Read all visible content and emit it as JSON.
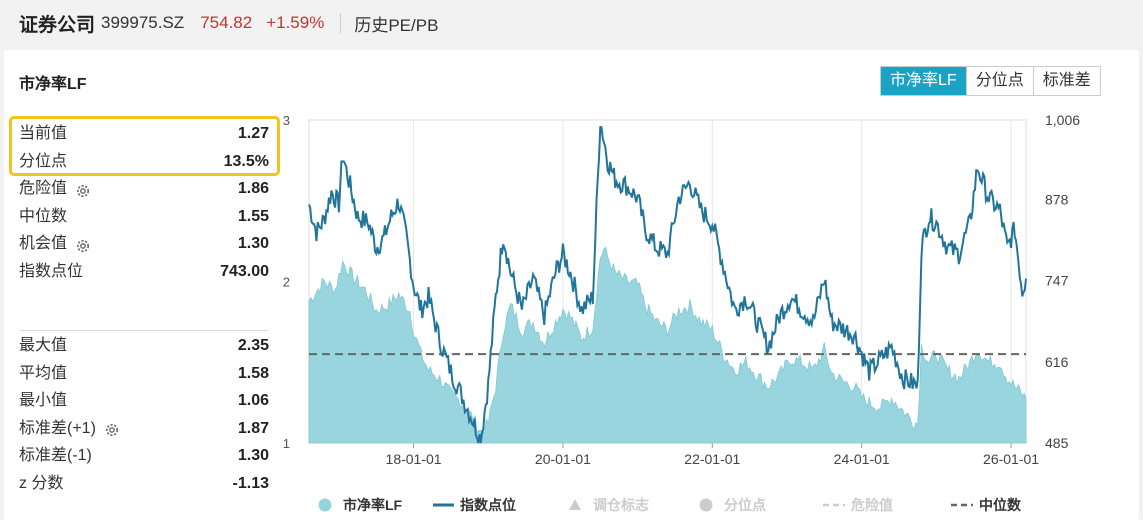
{
  "header": {
    "name": "证券公司",
    "code": "399975.SZ",
    "price": "754.82",
    "change": "+1.59%",
    "history": "历史PE/PB"
  },
  "panel": {
    "title": "市净率LF",
    "tabs": [
      "市净率LF",
      "分位点",
      "标准差"
    ],
    "active_tab": 0
  },
  "stats_top": [
    {
      "label": "当前值",
      "value": "1.27",
      "gear": false
    },
    {
      "label": "分位点",
      "value": "13.5%",
      "gear": false
    },
    {
      "label": "危险值",
      "value": "1.86",
      "gear": true
    },
    {
      "label": "中位数",
      "value": "1.55",
      "gear": false
    },
    {
      "label": "机会值",
      "value": "1.30",
      "gear": true
    },
    {
      "label": "指数点位",
      "value": "743.00",
      "gear": false
    }
  ],
  "stats_bottom": [
    {
      "label": "最大值",
      "value": "2.35",
      "gear": false
    },
    {
      "label": "平均值",
      "value": "1.58",
      "gear": false
    },
    {
      "label": "最小值",
      "value": "1.06",
      "gear": false
    },
    {
      "label": "标准差(+1)",
      "value": "1.87",
      "gear": true
    },
    {
      "label": "标准差(-1)",
      "value": "1.30",
      "gear": false
    },
    {
      "label": "z 分数",
      "value": "-1.13",
      "gear": false
    }
  ],
  "colors": {
    "accent": "#1aa3c4",
    "price_red": "#c23531",
    "area_fill": "#93d3dc",
    "index_line": "#22759a",
    "median_line": "#666666",
    "highlight_border": "#f6c222"
  },
  "chart_data": {
    "type": "area",
    "x_ticks": [
      "18-01-01",
      "20-01-01",
      "22-01-01",
      "24-01-01",
      "26-01-01"
    ],
    "y_left_ticks": [
      "3",
      "2",
      "1"
    ],
    "y_left_range": [
      1,
      3
    ],
    "y_right_ticks": [
      "1,006",
      "878",
      "747",
      "616",
      "485"
    ],
    "y_right_range": [
      485,
      1006
    ],
    "median_value": 1.55,
    "legend": [
      {
        "label": "市净率LF",
        "marker": "circle",
        "color": "#93d3dc",
        "active": true
      },
      {
        "label": "指数点位",
        "marker": "line",
        "color": "#22759a",
        "active": true
      },
      {
        "label": "调仓标志",
        "marker": "triangle",
        "color": "#cccccc",
        "active": false
      },
      {
        "label": "分位点",
        "marker": "circle",
        "color": "#cccccc",
        "active": false
      },
      {
        "label": "危险值",
        "marker": "dash",
        "color": "#cccccc",
        "active": false
      },
      {
        "label": "中位数",
        "marker": "dash",
        "color": "#666666",
        "active": true
      }
    ],
    "pb_series": [
      {
        "t": 2016.6,
        "v": 1.88
      },
      {
        "t": 2016.8,
        "v": 2.0
      },
      {
        "t": 2016.95,
        "v": 1.95
      },
      {
        "t": 2017.05,
        "v": 2.12
      },
      {
        "t": 2017.2,
        "v": 2.02
      },
      {
        "t": 2017.35,
        "v": 1.95
      },
      {
        "t": 2017.5,
        "v": 1.82
      },
      {
        "t": 2017.65,
        "v": 1.85
      },
      {
        "t": 2017.8,
        "v": 1.92
      },
      {
        "t": 2017.95,
        "v": 1.82
      },
      {
        "t": 2018.0,
        "v": 1.7
      },
      {
        "t": 2018.1,
        "v": 1.55
      },
      {
        "t": 2018.2,
        "v": 1.45
      },
      {
        "t": 2018.35,
        "v": 1.4
      },
      {
        "t": 2018.5,
        "v": 1.3
      },
      {
        "t": 2018.65,
        "v": 1.25
      },
      {
        "t": 2018.8,
        "v": 1.15
      },
      {
        "t": 2018.9,
        "v": 1.07
      },
      {
        "t": 2019.0,
        "v": 1.12
      },
      {
        "t": 2019.1,
        "v": 1.35
      },
      {
        "t": 2019.2,
        "v": 1.7
      },
      {
        "t": 2019.3,
        "v": 1.85
      },
      {
        "t": 2019.45,
        "v": 1.7
      },
      {
        "t": 2019.6,
        "v": 1.75
      },
      {
        "t": 2019.75,
        "v": 1.62
      },
      {
        "t": 2019.9,
        "v": 1.75
      },
      {
        "t": 2020.0,
        "v": 1.83
      },
      {
        "t": 2020.1,
        "v": 1.78
      },
      {
        "t": 2020.25,
        "v": 1.65
      },
      {
        "t": 2020.4,
        "v": 1.72
      },
      {
        "t": 2020.5,
        "v": 2.15
      },
      {
        "t": 2020.55,
        "v": 2.2
      },
      {
        "t": 2020.7,
        "v": 2.05
      },
      {
        "t": 2020.85,
        "v": 2.0
      },
      {
        "t": 2021.0,
        "v": 1.98
      },
      {
        "t": 2021.1,
        "v": 1.85
      },
      {
        "t": 2021.25,
        "v": 1.75
      },
      {
        "t": 2021.4,
        "v": 1.7
      },
      {
        "t": 2021.55,
        "v": 1.82
      },
      {
        "t": 2021.7,
        "v": 1.85
      },
      {
        "t": 2021.85,
        "v": 1.75
      },
      {
        "t": 2022.0,
        "v": 1.7
      },
      {
        "t": 2022.15,
        "v": 1.55
      },
      {
        "t": 2022.3,
        "v": 1.45
      },
      {
        "t": 2022.45,
        "v": 1.5
      },
      {
        "t": 2022.6,
        "v": 1.42
      },
      {
        "t": 2022.75,
        "v": 1.35
      },
      {
        "t": 2022.9,
        "v": 1.42
      },
      {
        "t": 2023.05,
        "v": 1.52
      },
      {
        "t": 2023.2,
        "v": 1.5
      },
      {
        "t": 2023.35,
        "v": 1.45
      },
      {
        "t": 2023.5,
        "v": 1.58
      },
      {
        "t": 2023.6,
        "v": 1.43
      },
      {
        "t": 2023.75,
        "v": 1.38
      },
      {
        "t": 2023.9,
        "v": 1.35
      },
      {
        "t": 2024.0,
        "v": 1.28
      },
      {
        "t": 2024.1,
        "v": 1.25
      },
      {
        "t": 2024.25,
        "v": 1.22
      },
      {
        "t": 2024.4,
        "v": 1.28
      },
      {
        "t": 2024.55,
        "v": 1.2
      },
      {
        "t": 2024.7,
        "v": 1.13
      },
      {
        "t": 2024.75,
        "v": 1.12
      },
      {
        "t": 2024.8,
        "v": 1.6
      },
      {
        "t": 2024.9,
        "v": 1.5
      },
      {
        "t": 2025.0,
        "v": 1.55
      },
      {
        "t": 2025.15,
        "v": 1.45
      },
      {
        "t": 2025.3,
        "v": 1.4
      },
      {
        "t": 2025.45,
        "v": 1.5
      },
      {
        "t": 2025.55,
        "v": 1.58
      },
      {
        "t": 2025.7,
        "v": 1.5
      },
      {
        "t": 2025.85,
        "v": 1.5
      },
      {
        "t": 2025.95,
        "v": 1.4
      },
      {
        "t": 2026.05,
        "v": 1.35
      },
      {
        "t": 2026.15,
        "v": 1.3
      },
      {
        "t": 2026.2,
        "v": 1.27
      }
    ],
    "index_series": [
      {
        "t": 2016.6,
        "v": 870
      },
      {
        "t": 2016.7,
        "v": 825
      },
      {
        "t": 2016.8,
        "v": 845
      },
      {
        "t": 2016.9,
        "v": 890
      },
      {
        "t": 2017.0,
        "v": 870
      },
      {
        "t": 2017.05,
        "v": 950
      },
      {
        "t": 2017.15,
        "v": 900
      },
      {
        "t": 2017.25,
        "v": 850
      },
      {
        "t": 2017.4,
        "v": 840
      },
      {
        "t": 2017.5,
        "v": 800
      },
      {
        "t": 2017.6,
        "v": 815
      },
      {
        "t": 2017.7,
        "v": 850
      },
      {
        "t": 2017.8,
        "v": 875
      },
      {
        "t": 2017.9,
        "v": 820
      },
      {
        "t": 2018.0,
        "v": 740
      },
      {
        "t": 2018.1,
        "v": 700
      },
      {
        "t": 2018.2,
        "v": 720
      },
      {
        "t": 2018.35,
        "v": 650
      },
      {
        "t": 2018.5,
        "v": 600
      },
      {
        "t": 2018.65,
        "v": 560
      },
      {
        "t": 2018.8,
        "v": 520
      },
      {
        "t": 2018.9,
        "v": 490
      },
      {
        "t": 2019.0,
        "v": 580
      },
      {
        "t": 2019.1,
        "v": 720
      },
      {
        "t": 2019.2,
        "v": 820
      },
      {
        "t": 2019.3,
        "v": 760
      },
      {
        "t": 2019.45,
        "v": 700
      },
      {
        "t": 2019.6,
        "v": 750
      },
      {
        "t": 2019.75,
        "v": 690
      },
      {
        "t": 2019.9,
        "v": 760
      },
      {
        "t": 2020.0,
        "v": 790
      },
      {
        "t": 2020.1,
        "v": 760
      },
      {
        "t": 2020.25,
        "v": 700
      },
      {
        "t": 2020.4,
        "v": 720
      },
      {
        "t": 2020.5,
        "v": 1006
      },
      {
        "t": 2020.6,
        "v": 940
      },
      {
        "t": 2020.7,
        "v": 910
      },
      {
        "t": 2020.85,
        "v": 900
      },
      {
        "t": 2021.0,
        "v": 880
      },
      {
        "t": 2021.1,
        "v": 830
      },
      {
        "t": 2021.25,
        "v": 800
      },
      {
        "t": 2021.4,
        "v": 790
      },
      {
        "t": 2021.55,
        "v": 880
      },
      {
        "t": 2021.7,
        "v": 905
      },
      {
        "t": 2021.85,
        "v": 860
      },
      {
        "t": 2022.0,
        "v": 840
      },
      {
        "t": 2022.15,
        "v": 770
      },
      {
        "t": 2022.3,
        "v": 700
      },
      {
        "t": 2022.45,
        "v": 720
      },
      {
        "t": 2022.6,
        "v": 680
      },
      {
        "t": 2022.75,
        "v": 640
      },
      {
        "t": 2022.9,
        "v": 690
      },
      {
        "t": 2023.05,
        "v": 720
      },
      {
        "t": 2023.2,
        "v": 700
      },
      {
        "t": 2023.35,
        "v": 680
      },
      {
        "t": 2023.5,
        "v": 750
      },
      {
        "t": 2023.6,
        "v": 680
      },
      {
        "t": 2023.75,
        "v": 670
      },
      {
        "t": 2023.9,
        "v": 660
      },
      {
        "t": 2024.0,
        "v": 630
      },
      {
        "t": 2024.1,
        "v": 600
      },
      {
        "t": 2024.25,
        "v": 620
      },
      {
        "t": 2024.4,
        "v": 640
      },
      {
        "t": 2024.55,
        "v": 590
      },
      {
        "t": 2024.7,
        "v": 580
      },
      {
        "t": 2024.75,
        "v": 575
      },
      {
        "t": 2024.8,
        "v": 800
      },
      {
        "t": 2024.9,
        "v": 850
      },
      {
        "t": 2025.0,
        "v": 840
      },
      {
        "t": 2025.15,
        "v": 800
      },
      {
        "t": 2025.3,
        "v": 790
      },
      {
        "t": 2025.45,
        "v": 840
      },
      {
        "t": 2025.55,
        "v": 930
      },
      {
        "t": 2025.7,
        "v": 880
      },
      {
        "t": 2025.85,
        "v": 860
      },
      {
        "t": 2025.95,
        "v": 800
      },
      {
        "t": 2026.05,
        "v": 830
      },
      {
        "t": 2026.15,
        "v": 730
      },
      {
        "t": 2026.2,
        "v": 750
      }
    ]
  }
}
